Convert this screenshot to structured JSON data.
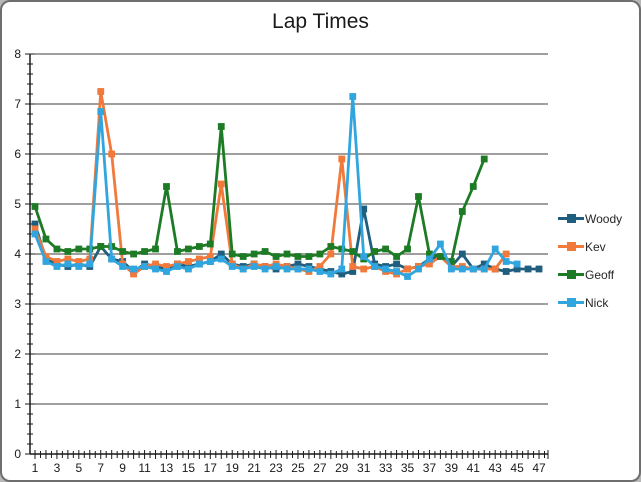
{
  "window": {
    "title": "Lap Times"
  },
  "chart_data": {
    "type": "line",
    "title": "Lap Times",
    "xlabel": "",
    "ylabel": "",
    "xlim": [
      1,
      47
    ],
    "ylim": [
      0,
      8
    ],
    "grid": "horizontal",
    "legend_position": "right",
    "x_tick_labels": [
      "1",
      "3",
      "5",
      "7",
      "9",
      "11",
      "13",
      "15",
      "17",
      "19",
      "21",
      "23",
      "25",
      "27",
      "29",
      "31",
      "33",
      "35",
      "37",
      "39",
      "41",
      "43",
      "45",
      "47"
    ],
    "y_tick_labels": [
      "0",
      "1",
      "2",
      "3",
      "4",
      "5",
      "6",
      "7",
      "8"
    ],
    "series": [
      {
        "name": "Woody",
        "color": "#1F5E7E",
        "values": [
          4.6,
          3.9,
          3.8,
          3.75,
          3.8,
          3.75,
          4.15,
          3.9,
          3.85,
          3.65,
          3.8,
          3.75,
          3.7,
          3.8,
          3.75,
          3.8,
          3.85,
          4.0,
          3.8,
          3.75,
          3.8,
          3.75,
          3.7,
          3.75,
          3.8,
          3.75,
          3.7,
          3.65,
          3.6,
          3.65,
          4.9,
          3.8,
          3.75,
          3.8,
          3.7,
          3.75,
          3.9,
          3.95,
          3.75,
          4.0,
          3.7,
          3.8,
          3.7,
          3.65,
          3.7,
          3.7,
          3.7
        ]
      },
      {
        "name": "Kev",
        "color": "#F0793B",
        "values": [
          4.5,
          3.95,
          3.85,
          3.9,
          3.85,
          3.9,
          7.25,
          6.0,
          3.8,
          3.6,
          3.75,
          3.8,
          3.75,
          3.8,
          3.85,
          3.9,
          3.95,
          5.4,
          3.8,
          3.7,
          3.8,
          3.75,
          3.8,
          3.75,
          3.7,
          3.65,
          3.75,
          4.0,
          5.9,
          3.75,
          3.7,
          3.75,
          3.65,
          3.6,
          3.7,
          3.75,
          3.8,
          3.95,
          3.75,
          3.75,
          3.7,
          3.7,
          3.7,
          4.0
        ]
      },
      {
        "name": "Geoff",
        "color": "#1E7B25",
        "values": [
          4.95,
          4.3,
          4.1,
          4.05,
          4.1,
          4.1,
          4.15,
          4.15,
          4.05,
          4.0,
          4.05,
          4.1,
          5.35,
          4.05,
          4.1,
          4.15,
          4.2,
          6.55,
          4.0,
          3.95,
          4.0,
          4.05,
          3.95,
          4.0,
          3.95,
          3.95,
          4.0,
          4.15,
          4.1,
          4.05,
          3.9,
          4.05,
          4.1,
          3.95,
          4.1,
          5.15,
          4.0,
          3.95,
          3.85,
          4.85,
          5.35,
          5.9
        ]
      },
      {
        "name": "Nick",
        "color": "#31A5DE",
        "values": [
          4.4,
          3.85,
          3.75,
          3.8,
          3.75,
          3.8,
          6.85,
          3.9,
          3.75,
          3.7,
          3.75,
          3.7,
          3.65,
          3.75,
          3.7,
          3.8,
          3.85,
          3.9,
          3.75,
          3.7,
          3.75,
          3.7,
          3.75,
          3.7,
          3.7,
          3.7,
          3.65,
          3.6,
          3.7,
          7.15,
          3.95,
          3.75,
          3.7,
          3.65,
          3.55,
          3.7,
          3.9,
          4.2,
          3.7,
          3.7,
          3.7,
          3.7,
          4.1,
          3.85,
          3.8
        ]
      }
    ]
  }
}
